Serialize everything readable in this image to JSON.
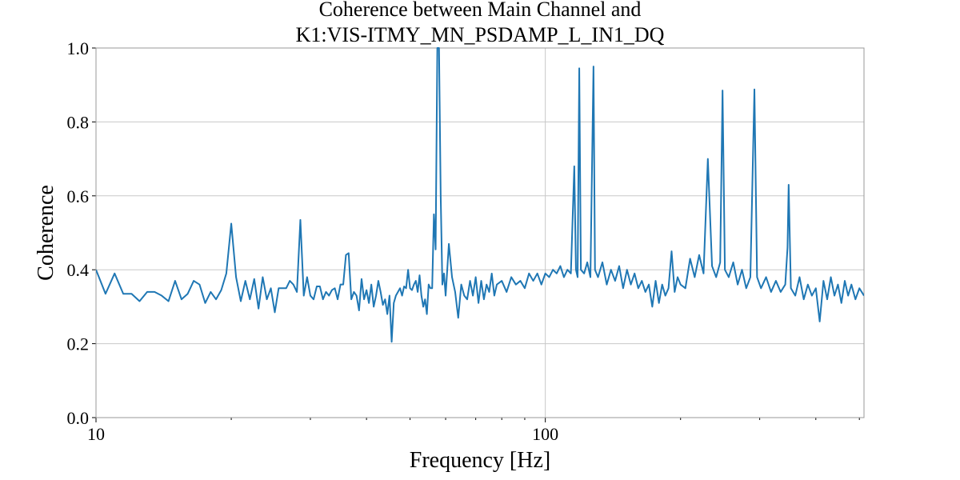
{
  "chart_data": {
    "type": "line",
    "title": [
      "Coherence between Main Channel and",
      "K1:VIS-ITMY_MN_PSDAMP_L_IN1_DQ"
    ],
    "xlabel": "Frequency [Hz]",
    "ylabel": "Coherence",
    "xscale": "log",
    "xlim": [
      10,
      512
    ],
    "ylim": [
      0,
      1
    ],
    "xticks": [
      10,
      100
    ],
    "xminorticks": [
      20,
      30,
      40,
      50,
      60,
      70,
      80,
      90,
      200,
      300,
      400,
      500
    ],
    "yticks": [
      {
        "value": 0,
        "label": "0.0"
      },
      0.2,
      0.4,
      0.6,
      0.8,
      {
        "value": 1,
        "label": "1.0"
      }
    ],
    "grid": true,
    "color": "#1f77b4",
    "x": [
      10,
      10.5,
      11,
      11.5,
      12,
      12.5,
      13,
      13.5,
      14,
      14.5,
      15,
      15.5,
      16,
      16.5,
      17,
      17.5,
      18,
      18.5,
      19,
      19.5,
      20,
      20.5,
      21,
      21.5,
      22,
      22.5,
      23,
      23.5,
      24,
      24.5,
      25,
      25.5,
      26,
      26.5,
      27,
      27.5,
      28,
      28.5,
      29,
      29.5,
      30,
      30.5,
      31,
      31.5,
      32,
      32.5,
      33,
      33.5,
      34,
      34.5,
      35,
      35.5,
      36,
      36.5,
      37,
      37.5,
      38,
      38.5,
      39,
      39.5,
      40,
      40.5,
      41,
      41.5,
      42,
      42.5,
      43,
      43.5,
      44,
      44.5,
      45,
      45.5,
      46,
      46.5,
      47,
      47.5,
      48,
      48.5,
      49,
      49.5,
      50,
      50.5,
      51,
      51.5,
      52,
      52.5,
      53,
      53.5,
      54,
      54.5,
      55,
      55.5,
      56,
      56.5,
      57,
      57.5,
      58,
      58.5,
      59,
      59.5,
      60,
      61,
      62,
      63,
      64,
      65,
      66,
      67,
      68,
      69,
      70,
      71,
      72,
      73,
      74,
      75,
      76,
      77,
      78,
      80,
      82,
      84,
      86,
      88,
      90,
      92,
      94,
      96,
      98,
      100,
      102,
      104,
      106,
      108,
      110,
      112,
      114,
      116,
      117,
      118,
      119,
      120,
      122,
      124,
      126,
      128,
      129,
      131,
      134,
      137,
      140,
      143,
      146,
      149,
      152,
      155,
      158,
      161,
      164,
      167,
      170,
      173,
      176,
      179,
      182,
      185,
      188,
      191,
      194,
      197,
      200,
      205,
      210,
      215,
      220,
      225,
      230,
      235,
      240,
      245,
      248,
      251,
      256,
      262,
      268,
      274,
      280,
      286,
      292,
      296,
      302,
      310,
      318,
      326,
      334,
      342,
      346,
      348,
      352,
      360,
      368,
      376,
      384,
      392,
      400,
      408,
      416,
      424,
      432,
      440,
      448,
      456,
      464,
      472,
      480,
      490,
      500,
      512
    ],
    "values": [
      0.4,
      0.335,
      0.39,
      0.335,
      0.335,
      0.315,
      0.34,
      0.34,
      0.33,
      0.315,
      0.37,
      0.32,
      0.335,
      0.37,
      0.36,
      0.31,
      0.34,
      0.32,
      0.345,
      0.39,
      0.525,
      0.38,
      0.315,
      0.37,
      0.32,
      0.375,
      0.295,
      0.38,
      0.32,
      0.35,
      0.285,
      0.35,
      0.35,
      0.35,
      0.37,
      0.36,
      0.34,
      0.535,
      0.33,
      0.38,
      0.33,
      0.32,
      0.355,
      0.355,
      0.32,
      0.34,
      0.33,
      0.345,
      0.35,
      0.32,
      0.36,
      0.36,
      0.44,
      0.445,
      0.32,
      0.34,
      0.33,
      0.29,
      0.375,
      0.32,
      0.345,
      0.31,
      0.36,
      0.3,
      0.33,
      0.37,
      0.34,
      0.305,
      0.32,
      0.28,
      0.33,
      0.205,
      0.31,
      0.33,
      0.34,
      0.35,
      0.33,
      0.355,
      0.35,
      0.4,
      0.35,
      0.345,
      0.36,
      0.37,
      0.34,
      0.385,
      0.33,
      0.3,
      0.32,
      0.28,
      0.36,
      0.35,
      0.35,
      0.55,
      0.455,
      1.0,
      1.0,
      0.6,
      0.36,
      0.39,
      0.33,
      0.47,
      0.38,
      0.34,
      0.27,
      0.36,
      0.33,
      0.32,
      0.37,
      0.33,
      0.38,
      0.31,
      0.37,
      0.32,
      0.36,
      0.34,
      0.39,
      0.33,
      0.36,
      0.37,
      0.34,
      0.38,
      0.36,
      0.37,
      0.35,
      0.39,
      0.37,
      0.39,
      0.36,
      0.39,
      0.38,
      0.4,
      0.39,
      0.41,
      0.38,
      0.4,
      0.39,
      0.68,
      0.4,
      0.38,
      0.945,
      0.4,
      0.39,
      0.42,
      0.38,
      0.95,
      0.4,
      0.38,
      0.42,
      0.36,
      0.4,
      0.37,
      0.41,
      0.35,
      0.4,
      0.36,
      0.39,
      0.35,
      0.37,
      0.34,
      0.36,
      0.3,
      0.37,
      0.31,
      0.36,
      0.33,
      0.35,
      0.45,
      0.34,
      0.38,
      0.36,
      0.35,
      0.43,
      0.38,
      0.44,
      0.39,
      0.7,
      0.41,
      0.38,
      0.42,
      0.885,
      0.4,
      0.38,
      0.42,
      0.36,
      0.4,
      0.35,
      0.38,
      0.888,
      0.38,
      0.35,
      0.38,
      0.34,
      0.37,
      0.34,
      0.36,
      0.46,
      0.63,
      0.35,
      0.33,
      0.38,
      0.32,
      0.36,
      0.33,
      0.35,
      0.26,
      0.37,
      0.32,
      0.38,
      0.33,
      0.36,
      0.31,
      0.37,
      0.33,
      0.36,
      0.32,
      0.35,
      0.33
    ]
  }
}
